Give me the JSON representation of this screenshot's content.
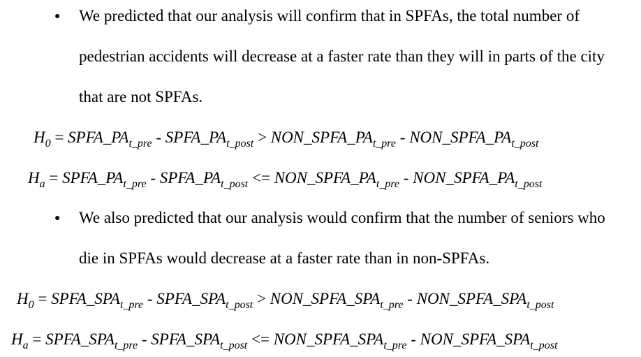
{
  "bullets": [
    {
      "lines": [
        "We predicted that our analysis will confirm that in SPFAs, the total number of",
        "pedestrian accidents will decrease at a faster rate than they will in parts of the city",
        "that are not SPFAs."
      ]
    },
    {
      "lines": [
        "We also predicted that our analysis would confirm that the number of seniors who",
        "die in SPFAs would decrease at a faster rate than in non-SPFAs."
      ]
    }
  ],
  "bullet_symbol": "●",
  "equations": [
    {
      "hyp": "H",
      "hyp_sub": "0",
      "eq": "=",
      "t1": "SPFA_PA",
      "t1_sub": "t_pre",
      "minus1": "-",
      "t2": "SPFA_PA",
      "t2_sub": "t_post",
      "rel": ">",
      "t3": "NON_SPFA_PA",
      "t3_sub": "t_pre",
      "minus2": "-",
      "t4": "NON_SPFA_PA",
      "t4_sub": "t_post"
    },
    {
      "hyp": "H",
      "hyp_sub": "a",
      "eq": "=",
      "t1": "SPFA_PA",
      "t1_sub": "t_pre",
      "minus1": "-",
      "t2": "SPFA_PA",
      "t2_sub": "t_post",
      "rel": "<=",
      "t3": "NON_SPFA_PA",
      "t3_sub": "t_pre",
      "minus2": "-",
      "t4": "NON_SPFA_PA",
      "t4_sub": "t_post"
    },
    {
      "hyp": "H",
      "hyp_sub": "0",
      "eq": "=",
      "t1": "SPFA_SPA",
      "t1_sub": "t_pre",
      "minus1": "-",
      "t2": "SPFA_SPA",
      "t2_sub": "t_post",
      "rel": ">",
      "t3": "NON_SPFA_SPA",
      "t3_sub": "t_pre",
      "minus2": "-",
      "t4": "NON_SPFA_SPA",
      "t4_sub": "t_post"
    },
    {
      "hyp": "H",
      "hyp_sub": "a",
      "eq": "=",
      "t1": "SPFA_SPA",
      "t1_sub": "t_pre",
      "minus1": "-",
      "t2": "SPFA_SPA",
      "t2_sub": "t_post",
      "rel": "<=",
      "t3": "NON_SPFA_SPA",
      "t3_sub": "t_pre",
      "minus2": "-",
      "t4": "NON_SPFA_SPA",
      "t4_sub": "t_post"
    }
  ]
}
